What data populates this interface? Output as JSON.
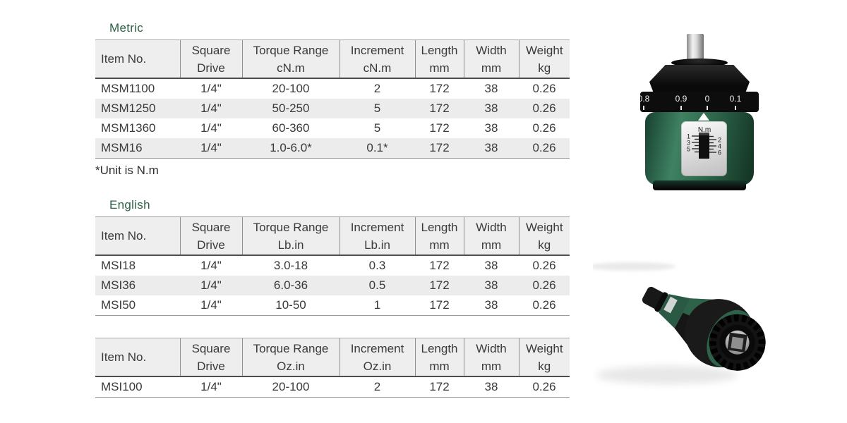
{
  "sections": [
    {
      "title": "Metric",
      "headers": [
        [
          "Item No.",
          ""
        ],
        [
          "Square",
          "Drive"
        ],
        [
          "Torque Range",
          "cN.m"
        ],
        [
          "Increment",
          "cN.m"
        ],
        [
          "Length",
          "mm"
        ],
        [
          "Width",
          "mm"
        ],
        [
          "Weight",
          "kg"
        ]
      ],
      "rows": [
        [
          "MSM1100",
          "1/4\"",
          "20-100",
          "2",
          "172",
          "38",
          "0.26"
        ],
        [
          "MSM1250",
          "1/4\"",
          "50-250",
          "5",
          "172",
          "38",
          "0.26"
        ],
        [
          "MSM1360",
          "1/4\"",
          "60-360",
          "5",
          "172",
          "38",
          "0.26"
        ],
        [
          "MSM16",
          "1/4\"",
          "1.0-6.0*",
          "0.1*",
          "172",
          "38",
          "0.26"
        ]
      ],
      "footnote": "*Unit is N.m"
    },
    {
      "title": "English",
      "headers": [
        [
          "Item No.",
          ""
        ],
        [
          "Square",
          "Drive"
        ],
        [
          "Torque Range",
          "Lb.in"
        ],
        [
          "Increment",
          "Lb.in"
        ],
        [
          "Length",
          "mm"
        ],
        [
          "Width",
          "mm"
        ],
        [
          "Weight",
          "kg"
        ]
      ],
      "rows": [
        [
          "MSI18",
          "1/4\"",
          "3.0-18",
          "0.3",
          "172",
          "38",
          "0.26"
        ],
        [
          "MSI36",
          "1/4\"",
          "6.0-36",
          "0.5",
          "172",
          "38",
          "0.26"
        ],
        [
          "MSI50",
          "1/4\"",
          "10-50",
          "1",
          "172",
          "38",
          "0.26"
        ]
      ],
      "footnote": ""
    },
    {
      "title": "",
      "headers": [
        [
          "Item No.",
          ""
        ],
        [
          "Square",
          "Drive"
        ],
        [
          "Torque Range",
          "Oz.in"
        ],
        [
          "Increment",
          "Oz.in"
        ],
        [
          "Length",
          "mm"
        ],
        [
          "Width",
          "mm"
        ],
        [
          "Weight",
          "kg"
        ]
      ],
      "rows": [
        [
          "MSI100",
          "1/4\"",
          "20-100",
          "2",
          "172",
          "38",
          "0.26"
        ]
      ],
      "footnote": ""
    }
  ],
  "dial_image": {
    "scale_labels": [
      "0.8",
      "0.9",
      "0",
      "0.1",
      "0"
    ],
    "window_unit": "N.m",
    "left_scale": [
      "1",
      "3",
      "5"
    ],
    "right_scale": [
      "2",
      "4",
      "6"
    ]
  },
  "colors": {
    "section_title_green": "#2a6144",
    "tool_body_green": "#2f6a4e",
    "table_header_bg": "#eeeeee",
    "table_row_alt_bg": "#ececec",
    "table_text": "#3a3a3a"
  }
}
